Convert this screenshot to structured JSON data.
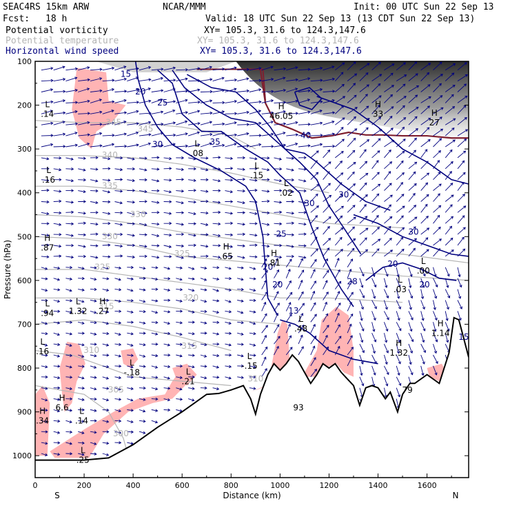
{
  "header": {
    "model": "SEAC4RS 15km ARW",
    "org": "NCAR/MMM",
    "init": "Init: 00 UTC Sun 22 Sep 13",
    "fcst_label": "Fcst:",
    "fcst_value": "18 h",
    "valid": "Valid: 18 UTC Sun 22 Sep 13 (13 CDT Sun 22 Sep 13)",
    "fields": [
      {
        "name": "Potential vorticity",
        "xy": "XY= 105.3, 31.6 to 124.3,147.6",
        "color": "#000000"
      },
      {
        "name": "Potential temperature",
        "xy": "XY= 105.3, 31.6 to 124.3,147.6",
        "color": "#b4b4b4"
      },
      {
        "name": "Horizontal wind speed",
        "xy": "XY= 105.3, 31.6 to 124.3,147.6",
        "color": "#00007f"
      }
    ]
  },
  "chart_data": {
    "type": "cross-section",
    "xlabel": "Distance (km)",
    "ylabel": "Pressure (hPa)",
    "xlim": [
      0,
      1770
    ],
    "ylim": [
      1050,
      100
    ],
    "xticks": [
      0,
      200,
      400,
      600,
      800,
      1000,
      1200,
      1400,
      1600
    ],
    "yticks": [
      100,
      200,
      300,
      400,
      500,
      600,
      700,
      800,
      900,
      1000
    ],
    "x_end_labels": {
      "left": "S",
      "right": "N"
    },
    "colors": {
      "wind": "#00007f",
      "theta": "#b4b4b4",
      "pv_shade": "#ffb4b4",
      "terrain": "#000000",
      "tropopause": "#7f1f2f"
    },
    "terrain": [
      [
        0,
        1010
      ],
      [
        100,
        1010
      ],
      [
        200,
        1010
      ],
      [
        300,
        1005
      ],
      [
        400,
        975
      ],
      [
        500,
        935
      ],
      [
        600,
        900
      ],
      [
        650,
        880
      ],
      [
        700,
        860
      ],
      [
        750,
        858
      ],
      [
        800,
        850
      ],
      [
        850,
        840
      ],
      [
        880,
        870
      ],
      [
        900,
        905
      ],
      [
        920,
        860
      ],
      [
        950,
        815
      ],
      [
        975,
        790
      ],
      [
        1000,
        805
      ],
      [
        1025,
        790
      ],
      [
        1050,
        770
      ],
      [
        1075,
        785
      ],
      [
        1100,
        810
      ],
      [
        1125,
        835
      ],
      [
        1150,
        815
      ],
      [
        1175,
        790
      ],
      [
        1200,
        800
      ],
      [
        1225,
        790
      ],
      [
        1250,
        810
      ],
      [
        1275,
        825
      ],
      [
        1300,
        840
      ],
      [
        1325,
        885
      ],
      [
        1350,
        845
      ],
      [
        1375,
        840
      ],
      [
        1400,
        845
      ],
      [
        1430,
        870
      ],
      [
        1450,
        855
      ],
      [
        1480,
        900
      ],
      [
        1500,
        860
      ],
      [
        1530,
        835
      ],
      [
        1550,
        835
      ],
      [
        1600,
        815
      ],
      [
        1650,
        835
      ],
      [
        1690,
        765
      ],
      [
        1710,
        685
      ],
      [
        1730,
        690
      ],
      [
        1770,
        775
      ]
    ],
    "wind_speed_labels": [
      {
        "x": 430,
        "p": 170,
        "text": "20"
      },
      {
        "x": 520,
        "p": 195,
        "text": "25"
      },
      {
        "x": 500,
        "p": 290,
        "text": "30"
      },
      {
        "x": 735,
        "p": 285,
        "text": "35"
      },
      {
        "x": 370,
        "p": 130,
        "text": "15"
      },
      {
        "x": 1105,
        "p": 270,
        "text": "40"
      },
      {
        "x": 1120,
        "p": 425,
        "text": "30"
      },
      {
        "x": 1005,
        "p": 495,
        "text": "25"
      },
      {
        "x": 1260,
        "p": 405,
        "text": "30"
      },
      {
        "x": 1545,
        "p": 490,
        "text": "30"
      },
      {
        "x": 1460,
        "p": 563,
        "text": "20"
      },
      {
        "x": 950,
        "p": 570,
        "text": "20"
      },
      {
        "x": 990,
        "p": 610,
        "text": "20"
      },
      {
        "x": 1590,
        "p": 610,
        "text": "20"
      },
      {
        "x": 1295,
        "p": 603,
        "text": "28"
      },
      {
        "x": 1055,
        "p": 670,
        "text": "13"
      },
      {
        "x": 1750,
        "p": 730,
        "text": "15"
      }
    ],
    "theta_labels": [
      {
        "x": 320,
        "p": 240,
        "text": "345"
      },
      {
        "x": 450,
        "p": 255,
        "text": "345"
      },
      {
        "x": 305,
        "p": 315,
        "text": "340"
      },
      {
        "x": 305,
        "p": 385,
        "text": "335"
      },
      {
        "x": 305,
        "p": 500,
        "text": "330"
      },
      {
        "x": 420,
        "p": 450,
        "text": "330"
      },
      {
        "x": 275,
        "p": 570,
        "text": "325"
      },
      {
        "x": 600,
        "p": 540,
        "text": "325"
      },
      {
        "x": 635,
        "p": 640,
        "text": "320"
      },
      {
        "x": 290,
        "p": 660,
        "text": "315"
      },
      {
        "x": 630,
        "p": 750,
        "text": "315"
      },
      {
        "x": 230,
        "p": 760,
        "text": "310"
      },
      {
        "x": 330,
        "p": 850,
        "text": "305"
      },
      {
        "x": 350,
        "p": 950,
        "text": "300"
      },
      {
        "x": 900,
        "p": 825,
        "text": "310"
      }
    ],
    "pv_extrema": [
      {
        "x": 50,
        "p": 210,
        "mark": "L",
        "value": ".14"
      },
      {
        "x": 55,
        "p": 360,
        "mark": "L",
        "value": ".16"
      },
      {
        "x": 50,
        "p": 515,
        "mark": "H",
        "value": ".87"
      },
      {
        "x": 50,
        "p": 665,
        "mark": "L",
        "value": ".94"
      },
      {
        "x": 175,
        "p": 660,
        "mark": "L",
        "value": "1.32"
      },
      {
        "x": 275,
        "p": 660,
        "mark": "H",
        "value": ".27"
      },
      {
        "x": 30,
        "p": 752,
        "mark": "L",
        "value": ".16"
      },
      {
        "x": 395,
        "p": 800,
        "mark": "L",
        "value": "-.18"
      },
      {
        "x": 625,
        "p": 820,
        "mark": "L",
        "value": ".21"
      },
      {
        "x": 875,
        "p": 785,
        "mark": "L",
        "value": "-.15"
      },
      {
        "x": 1085,
        "p": 700,
        "mark": "L",
        "value": ".48"
      },
      {
        "x": 1485,
        "p": 755,
        "mark": "H",
        "value": "1.32"
      },
      {
        "x": 1655,
        "p": 710,
        "mark": "H",
        "value": "1.14"
      },
      {
        "x": 1585,
        "p": 568,
        "mark": "L",
        "value": ".00"
      },
      {
        "x": 1490,
        "p": 610,
        "mark": "L",
        "value": ".03"
      },
      {
        "x": 1025,
        "p": 390,
        "mark": "L",
        "value": ".02"
      },
      {
        "x": 905,
        "p": 350,
        "mark": "L",
        "value": ".15"
      },
      {
        "x": 660,
        "p": 300,
        "mark": "L",
        "value": ".08"
      },
      {
        "x": 780,
        "p": 535,
        "mark": "H",
        "value": ".65"
      },
      {
        "x": 975,
        "p": 550,
        "mark": "H",
        "value": ".81"
      },
      {
        "x": 110,
        "p": 880,
        "mark": "H",
        "value": "6.6"
      },
      {
        "x": 190,
        "p": 910,
        "mark": "L",
        "value": ".14"
      },
      {
        "x": 30,
        "p": 910,
        "mark": "H",
        "value": ".34"
      },
      {
        "x": 195,
        "p": 1000,
        "mark": "L",
        "value": ".25"
      },
      {
        "x": 1005,
        "p": 215,
        "mark": "H",
        "value": "46.05"
      },
      {
        "x": 1400,
        "p": 210,
        "mark": "H",
        "value": "33"
      },
      {
        "x": 1630,
        "p": 230,
        "mark": "H",
        "value": "27"
      },
      {
        "x": 1075,
        "p": 880,
        "mark": "",
        "value": "93"
      },
      {
        "x": 1520,
        "p": 840,
        "mark": "",
        "value": "79"
      }
    ]
  }
}
